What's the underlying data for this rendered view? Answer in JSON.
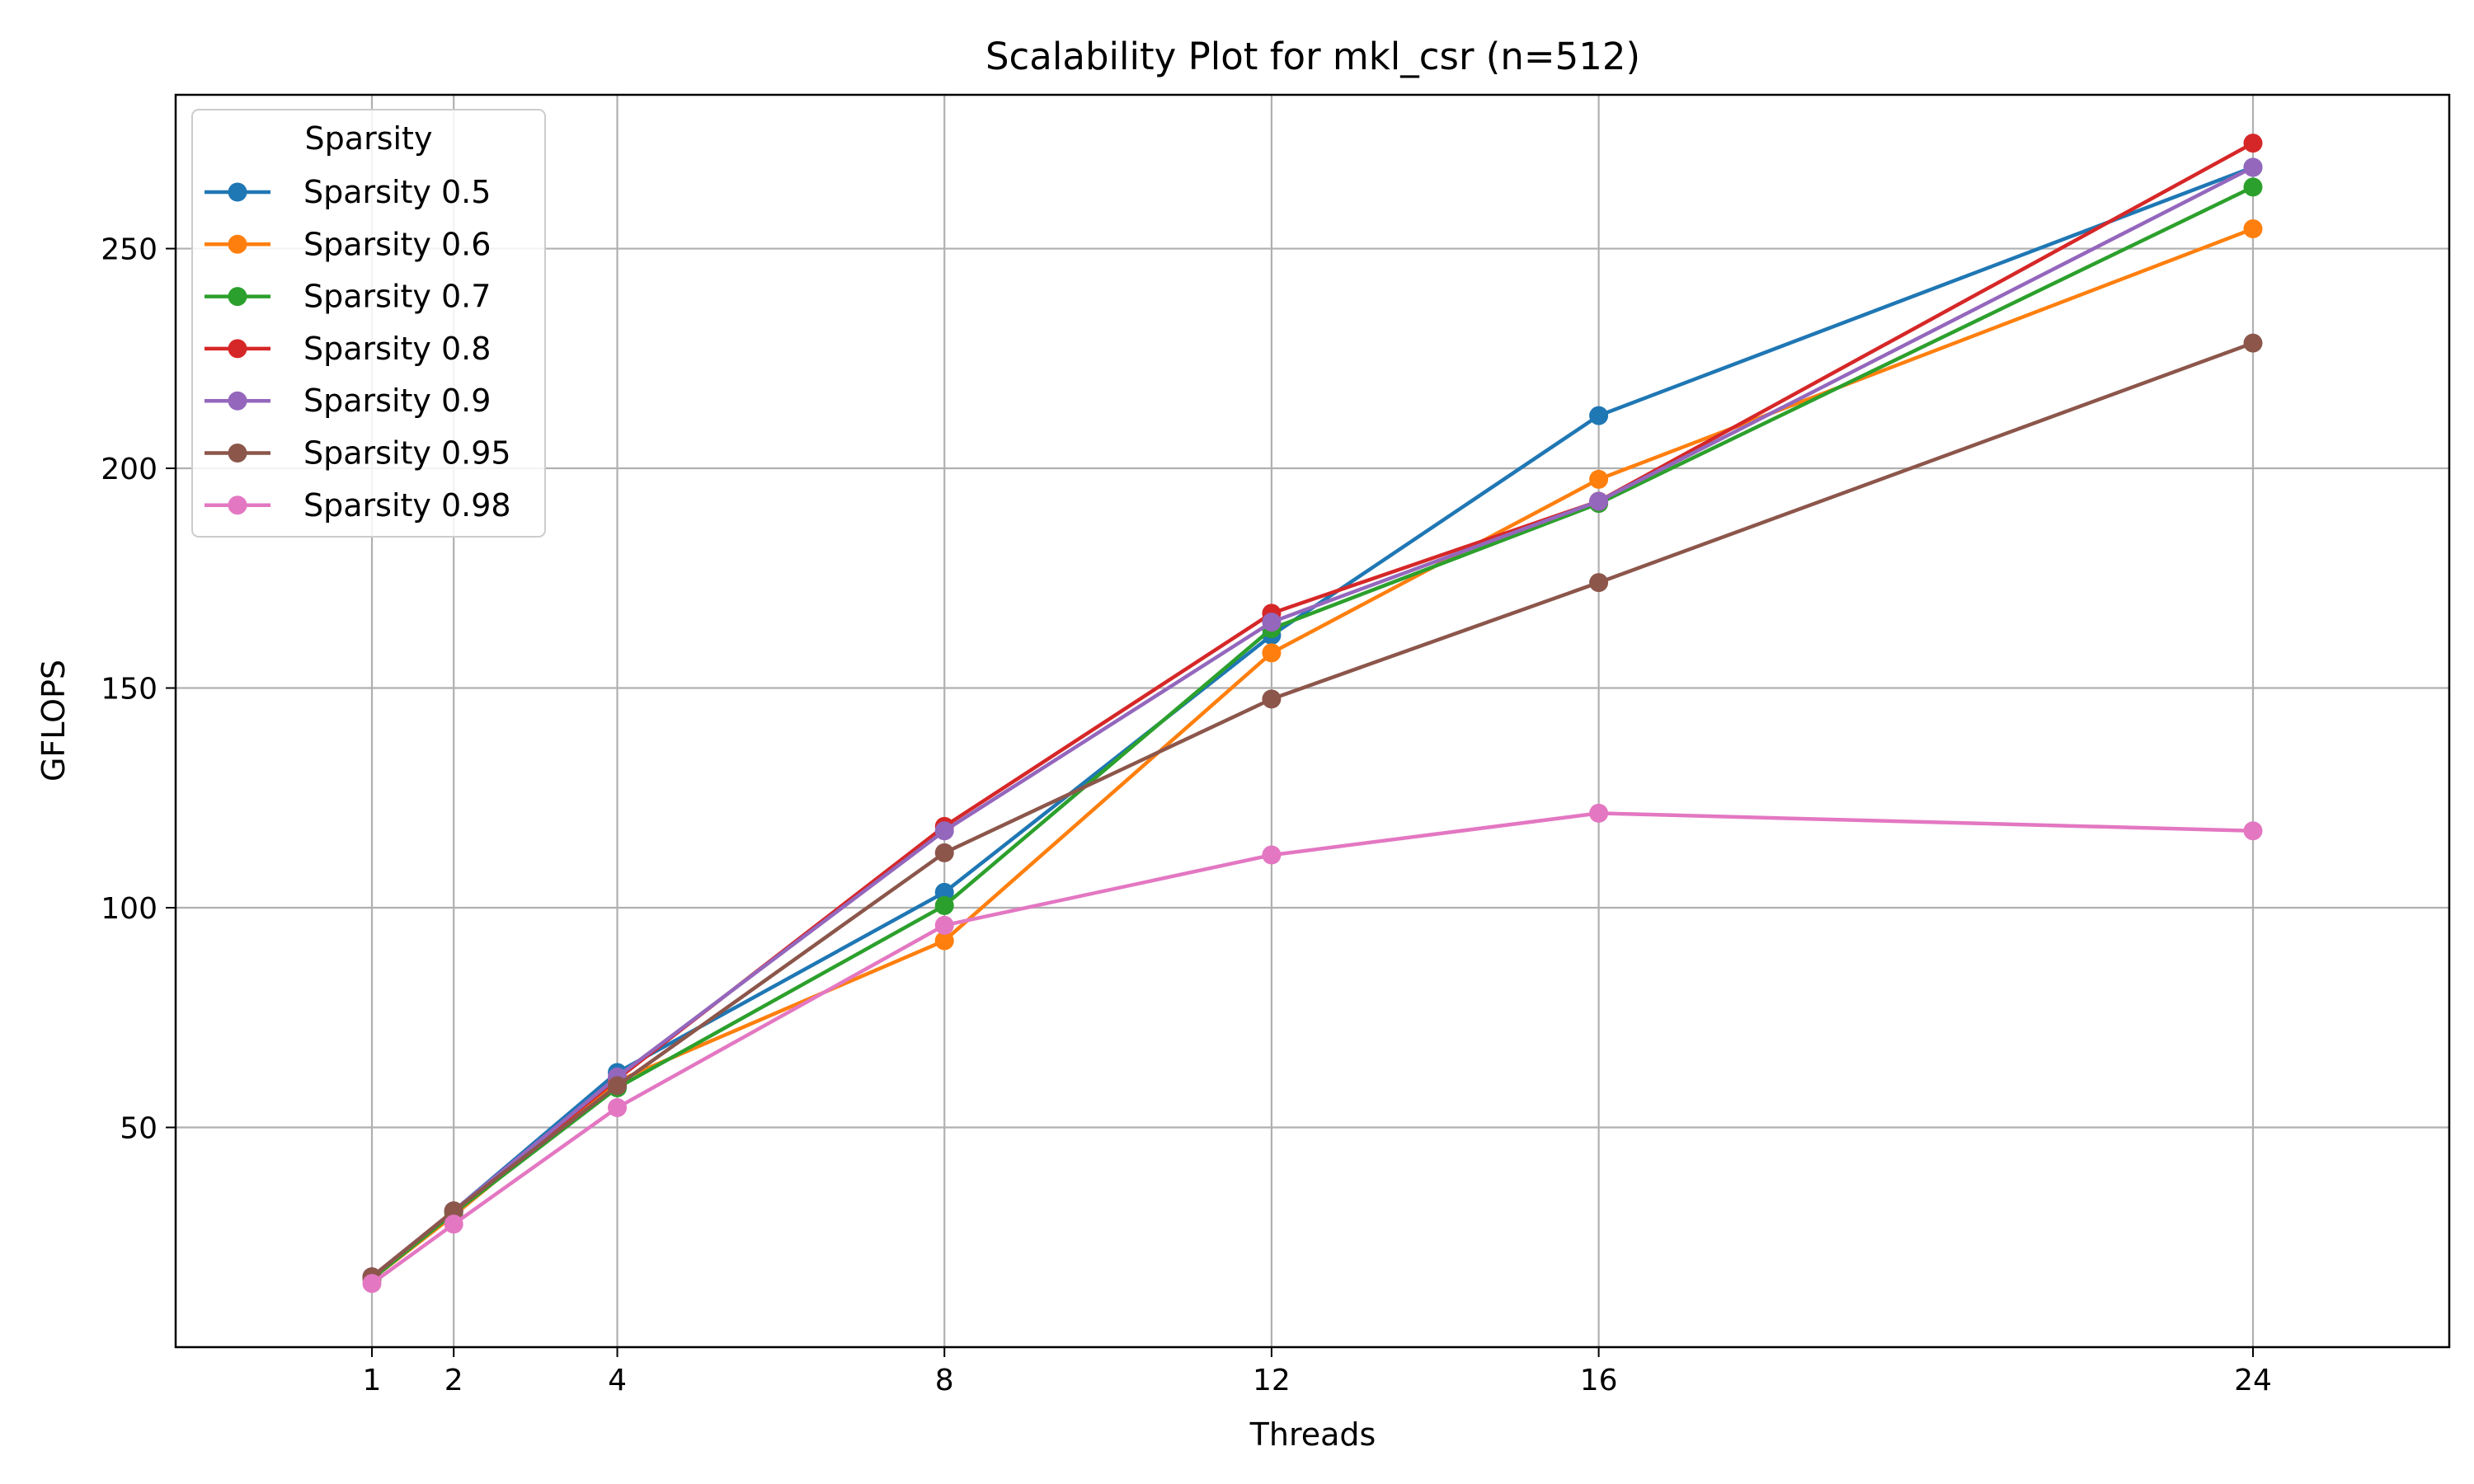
{
  "chart_data": {
    "type": "line",
    "title": "Scalability Plot for mkl_csr (n=512)",
    "xlabel": "Threads",
    "ylabel": "GFLOPS",
    "x": [
      1,
      2,
      4,
      8,
      12,
      16,
      24
    ],
    "x_ticks": [
      "1",
      "2",
      "4",
      "8",
      "12",
      "16",
      "24"
    ],
    "y_ticks": [
      "50",
      "100",
      "150",
      "200",
      "250"
    ],
    "xlim": [
      -1.4,
      26.4
    ],
    "ylim": [
      0,
      285
    ],
    "grid": true,
    "legend_title": "Sparsity",
    "legend_position": "top-left",
    "series": [
      {
        "name": "Sparsity 0.5",
        "color": "#1f77b4",
        "values": [
          16,
          31,
          62.5,
          103.5,
          162,
          212,
          268.5
        ]
      },
      {
        "name": "Sparsity 0.6",
        "color": "#ff7f0e",
        "values": [
          15.5,
          30,
          60.5,
          92.5,
          158,
          197.5,
          254.5
        ]
      },
      {
        "name": "Sparsity 0.7",
        "color": "#2ca02c",
        "values": [
          15.5,
          30.5,
          59,
          100.5,
          163.5,
          192,
          264
        ]
      },
      {
        "name": "Sparsity 0.8",
        "color": "#d62728",
        "values": [
          16,
          31,
          61,
          118.5,
          167,
          192.5,
          274
        ]
      },
      {
        "name": "Sparsity 0.9",
        "color": "#9467bd",
        "values": [
          16,
          31,
          61.5,
          117.5,
          165,
          192.5,
          268.5
        ]
      },
      {
        "name": "Sparsity 0.95",
        "color": "#8c564b",
        "values": [
          16,
          31,
          59.5,
          112.5,
          147.5,
          174,
          228.5
        ]
      },
      {
        "name": "Sparsity 0.98",
        "color": "#e377c2",
        "values": [
          14.5,
          28,
          54.5,
          96,
          112,
          121.5,
          117.5
        ]
      }
    ]
  }
}
